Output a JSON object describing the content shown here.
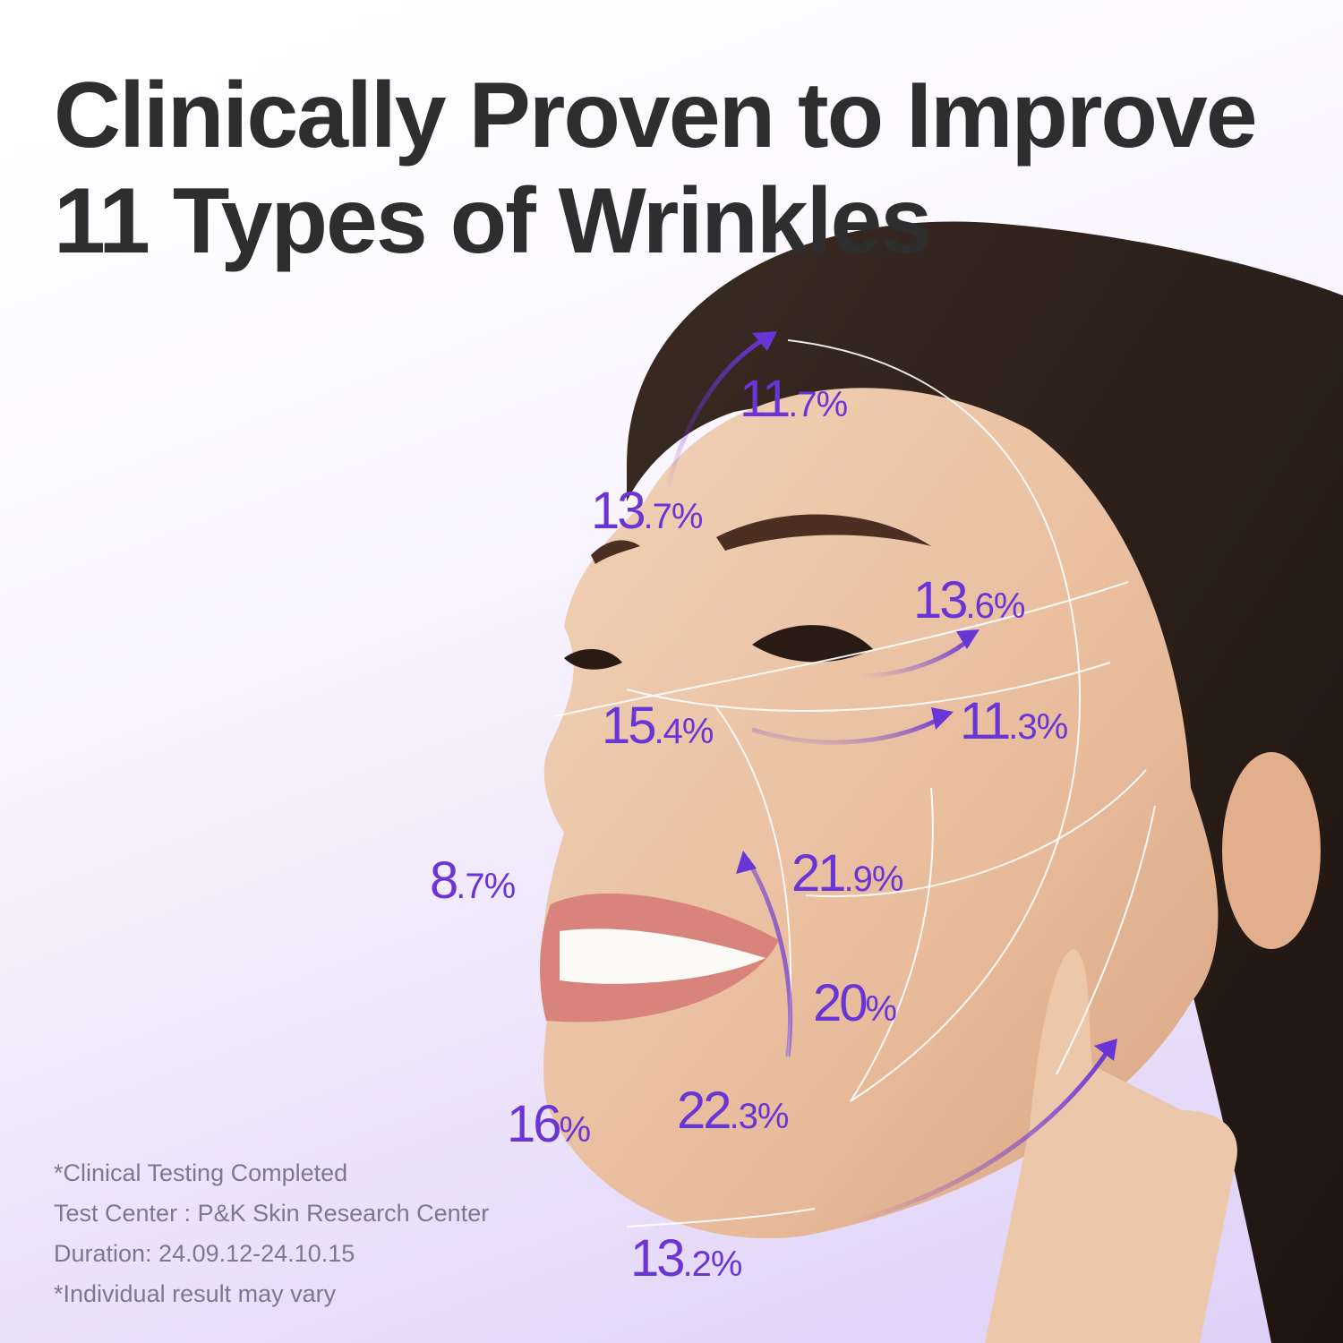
{
  "title": {
    "line1": "Clinically Proven to Improve",
    "line2": "11 Types of Wrinkles"
  },
  "colors": {
    "accent": "#6a35d6",
    "title": "#2e2e2e",
    "notes": "#7d7790"
  },
  "stats": [
    {
      "main": "11",
      "rest": ".7%"
    },
    {
      "main": "13",
      "rest": ".7%"
    },
    {
      "main": "13",
      "rest": ".6%"
    },
    {
      "main": "15",
      "rest": ".4%"
    },
    {
      "main": "11",
      "rest": ".3%"
    },
    {
      "main": "8",
      "rest": ".7%"
    },
    {
      "main": "21",
      "rest": ".9%"
    },
    {
      "main": "20",
      "rest": "%"
    },
    {
      "main": "22",
      "rest": ".3%"
    },
    {
      "main": "16",
      "rest": "%"
    },
    {
      "main": "13",
      "rest": ".2%"
    }
  ],
  "notes": [
    "*Clinical Testing Completed",
    "Test Center : P&K Skin Research Center",
    "Duration: 24.09.12-24.10.15",
    "*Individual result may vary"
  ]
}
